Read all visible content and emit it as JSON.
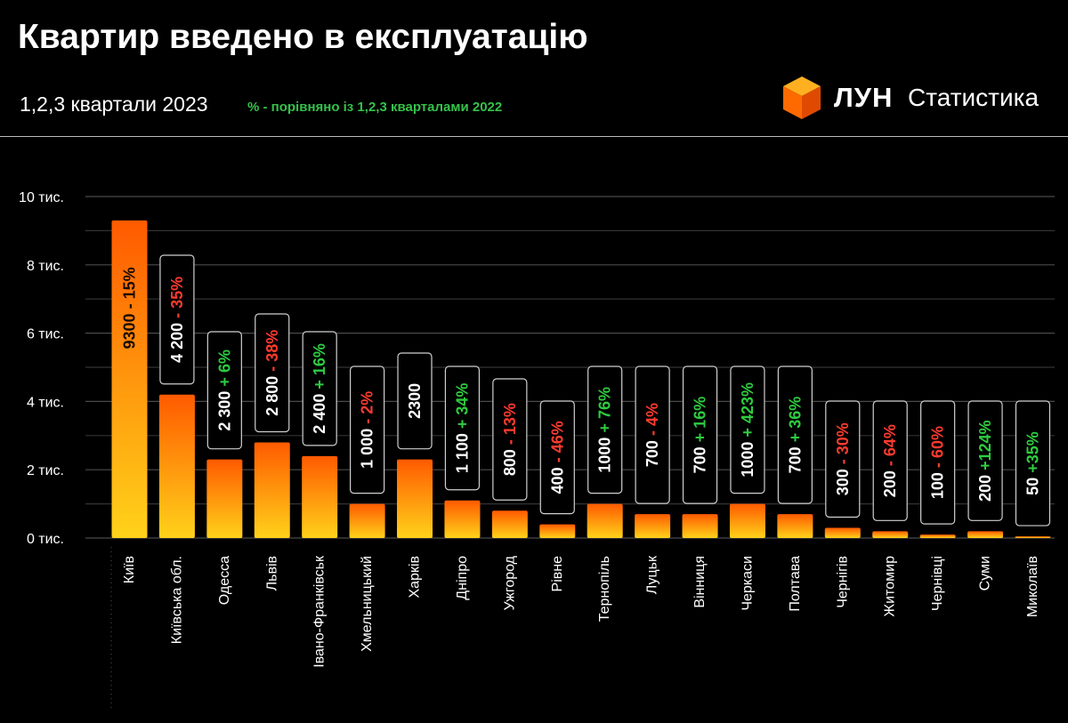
{
  "header": {
    "title": "Квартир введено в експлуатацію",
    "subtitle": "1,2,3 квартали 2023",
    "note": "% - порівняно із 1,2,3 кварталами 2022"
  },
  "logo": {
    "brand": "ЛУН",
    "label": "Статистика",
    "icon": "orange-cube-icon"
  },
  "colors": {
    "bar_top": "#ff5a00",
    "bar_bottom": "#ffd21a",
    "positive": "#2ecc40",
    "negative": "#ff3b2f",
    "note": "#34c24a"
  },
  "chart_data": {
    "type": "bar",
    "y_tick_labels": [
      "0 тис.",
      "2 тис.",
      "4 тис.",
      "6 тис.",
      "8 тис.",
      "10 тис."
    ],
    "ylim": [
      0,
      10000
    ],
    "grid": true,
    "categories": [
      "Київ",
      "Київська обл.",
      "Одесса",
      "Львів",
      "Івано-Франківськ",
      "Хмельницький",
      "Харків",
      "Дніпро",
      "Ужгород",
      "Рівне",
      "Тернопіль",
      "Луцьк",
      "Вінниця",
      "Черкаси",
      "Полтава",
      "Чернігів",
      "Житомир",
      "Чернівці",
      "Суми",
      "Миколаїв"
    ],
    "values": [
      9300,
      4200,
      2300,
      2800,
      2400,
      1000,
      2300,
      1100,
      800,
      400,
      1000,
      700,
      700,
      1000,
      700,
      300,
      200,
      100,
      200,
      50
    ],
    "value_labels": [
      "9300",
      "4 200",
      "2 300",
      "2 800",
      "2 400",
      "1 000",
      "2300",
      "1 100",
      "800",
      "400",
      "1000",
      "700",
      "700",
      "1000",
      "700",
      "300",
      "200",
      "100",
      "200",
      "50"
    ],
    "change_labels": [
      "- 15%",
      "- 35%",
      "+ 6%",
      "- 38%",
      "+ 16%",
      "- 2%",
      "",
      "+ 34%",
      "- 13%",
      "- 46%",
      "+ 76%",
      "- 4%",
      "+ 16%",
      "+ 423%",
      "+ 36%",
      "- 30%",
      "- 64%",
      "- 60%",
      "+124%",
      "+35%"
    ]
  }
}
